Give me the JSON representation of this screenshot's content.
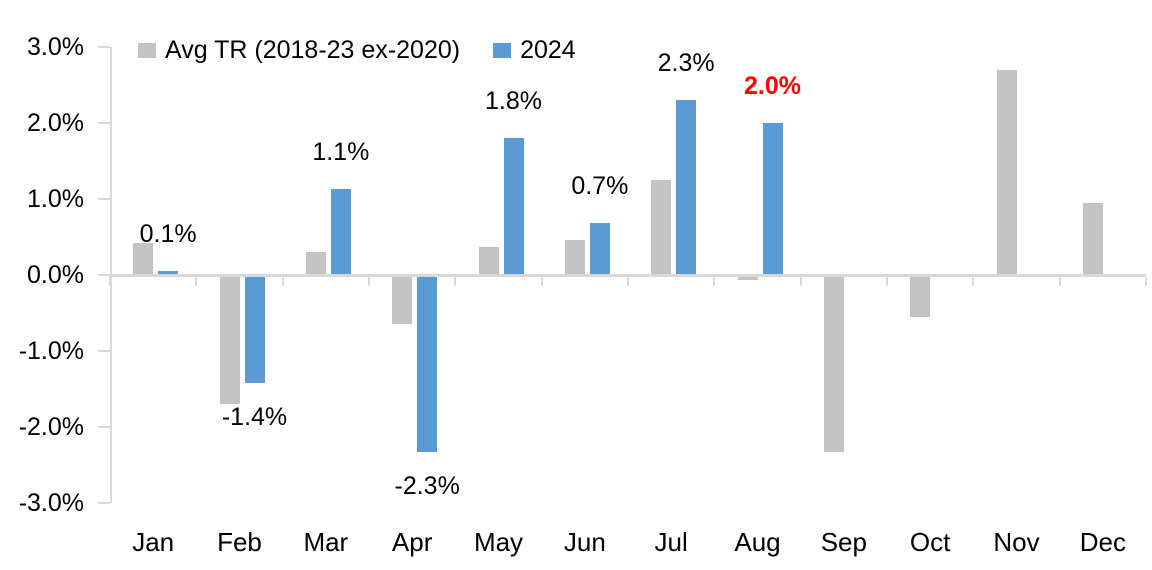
{
  "chart_data": {
    "type": "bar",
    "title": "",
    "xlabel": "",
    "ylabel": "",
    "categories": [
      "Jan",
      "Feb",
      "Mar",
      "Apr",
      "May",
      "Jun",
      "Jul",
      "Aug",
      "Sep",
      "Oct",
      "Nov",
      "Dec"
    ],
    "series": [
      {
        "name": "Avg TR (2018-23 ex-2020)",
        "color": "#c3c3c3",
        "values": [
          0.42,
          -1.7,
          0.3,
          -0.65,
          0.37,
          0.46,
          1.25,
          -0.07,
          -2.33,
          -0.55,
          2.7,
          0.95
        ]
      },
      {
        "name": "2024",
        "color": "#5b9bd5",
        "values": [
          0.05,
          -1.42,
          1.13,
          -2.33,
          1.8,
          0.68,
          2.3,
          2.0,
          null,
          null,
          null,
          null
        ],
        "labels": [
          "0.1%",
          "-1.4%",
          "1.1%",
          "-2.3%",
          "1.8%",
          "0.7%",
          "2.3%",
          "2.0%",
          "",
          "",
          "",
          ""
        ],
        "label_colors": [
          "#000000",
          "#000000",
          "#000000",
          "#000000",
          "#000000",
          "#000000",
          "#000000",
          "#ff0000",
          "",
          "",
          "",
          ""
        ],
        "label_bold": [
          false,
          false,
          false,
          false,
          false,
          false,
          false,
          true,
          false,
          false,
          false,
          false
        ]
      }
    ],
    "y_ticks": [
      "3.0%",
      "2.0%",
      "1.0%",
      "0.0%",
      "-1.0%",
      "-2.0%",
      "-3.0%"
    ],
    "y_tick_values": [
      3,
      2,
      1,
      0,
      -1,
      -2,
      -3
    ],
    "ylim": [
      -3,
      3
    ],
    "grid": false,
    "legend_position": "top",
    "axis_color": "#d9d9d9",
    "text_color": "#000000",
    "background_color": "#ffffff"
  }
}
